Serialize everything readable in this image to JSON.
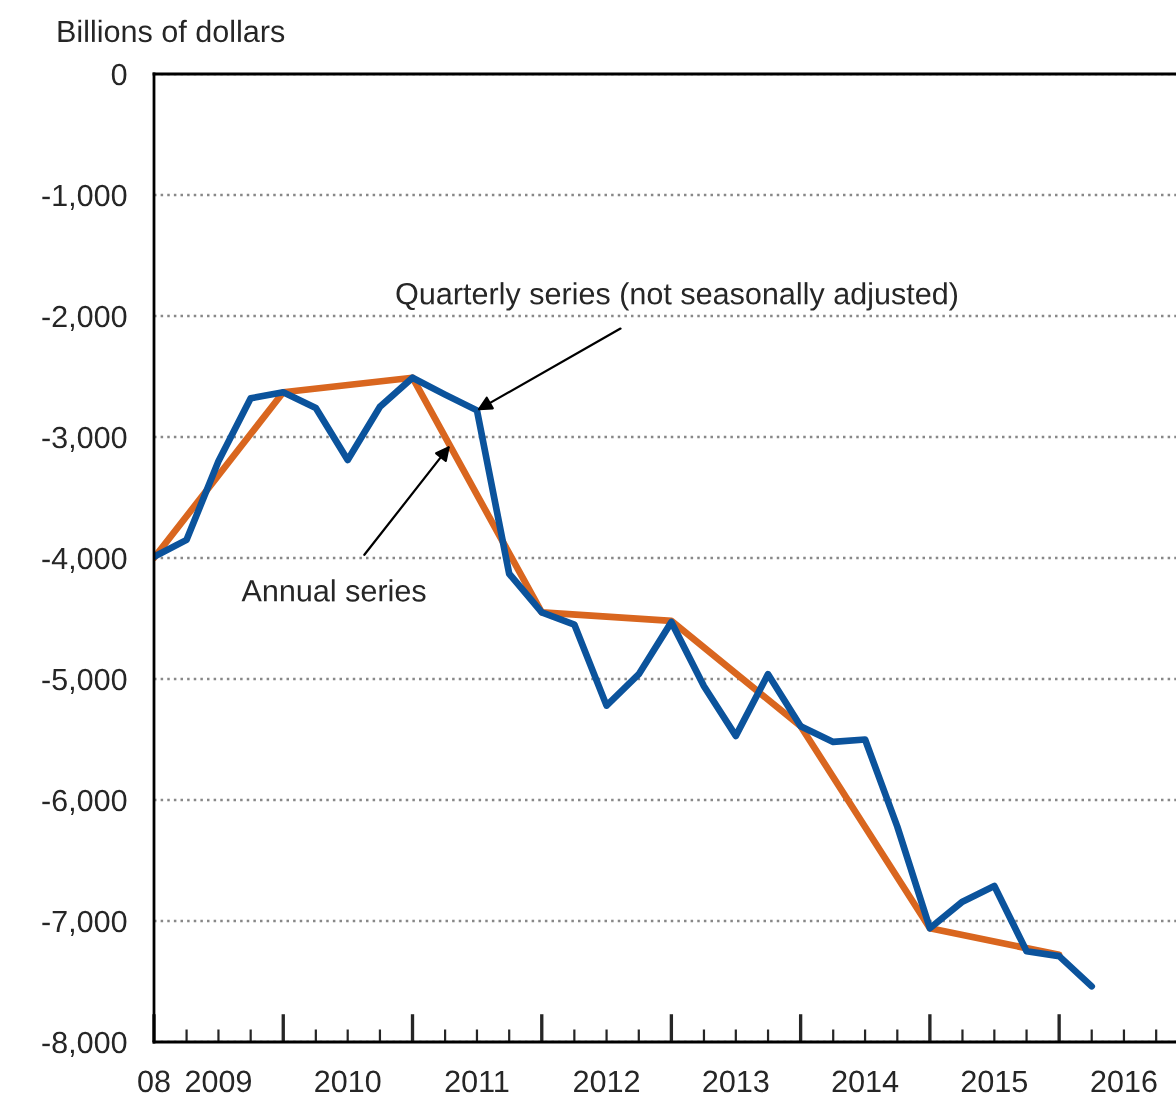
{
  "chart_data": {
    "type": "line",
    "ylabel": "Billions of dollars",
    "series": [
      {
        "color": "#d9661f",
        "x": [
          "2008-10",
          "2009-10",
          "2010-10",
          "2011-10",
          "2012-10",
          "2013-10",
          "2014-10",
          "2015-10"
        ],
        "values": [
          -4000,
          -2630,
          -2510,
          -4450,
          -4520,
          -5390,
          -7060,
          -7280
        ]
      },
      {
        "color": "#0b539c",
        "x": [
          "2008-10",
          "2009-01",
          "2009-04",
          "2009-07",
          "2009-10",
          "2010-01",
          "2010-04",
          "2010-07",
          "2010-10",
          "2011-01",
          "2011-04",
          "2011-07",
          "2011-10",
          "2012-01",
          "2012-04",
          "2012-07",
          "2012-10",
          "2013-01",
          "2013-04",
          "2013-07",
          "2013-10",
          "2014-01",
          "2014-04",
          "2014-07",
          "2014-10",
          "2015-01",
          "2015-04",
          "2015-07",
          "2015-10",
          "2016-01"
        ],
        "values": [
          -3990,
          -3850,
          -3200,
          -2680,
          -2630,
          -2760,
          -3190,
          -2750,
          -2510,
          -2650,
          -2780,
          -4130,
          -4450,
          -4550,
          -5220,
          -4960,
          -4530,
          -5060,
          -5470,
          -4960,
          -5390,
          -5520,
          -5500,
          -6220,
          -7060,
          -6840,
          -6710,
          -7250,
          -7290,
          -7540
        ]
      }
    ],
    "annotations": [
      {
        "text": "Quarterly series (not seasonally adjusted)",
        "x": "2011-04",
        "y": -2780
      },
      {
        "text": "Annual series",
        "x": "2011-01-15",
        "y": -3070
      }
    ],
    "xlim": [
      "2008-10",
      "2016-08-26"
    ],
    "xticks": [
      {
        "value": "2008-10",
        "label": "08"
      },
      {
        "value": "2009-01",
        "label": null
      },
      {
        "value": "2009-04",
        "label": "2009"
      },
      {
        "value": "2009-07",
        "label": null
      },
      {
        "value": "2009-10",
        "label": null
      },
      {
        "value": "2010-01",
        "label": null
      },
      {
        "value": "2010-04",
        "label": "2010"
      },
      {
        "value": "2010-07",
        "label": null
      },
      {
        "value": "2010-10",
        "label": null
      },
      {
        "value": "2011-01",
        "label": null
      },
      {
        "value": "2011-04",
        "label": "2011"
      },
      {
        "value": "2011-07",
        "label": null
      },
      {
        "value": "2011-10",
        "label": null
      },
      {
        "value": "2012-01",
        "label": null
      },
      {
        "value": "2012-04",
        "label": "2012"
      },
      {
        "value": "2012-07",
        "label": null
      },
      {
        "value": "2012-10",
        "label": null
      },
      {
        "value": "2013-01",
        "label": null
      },
      {
        "value": "2013-04",
        "label": "2013"
      },
      {
        "value": "2013-07",
        "label": null
      },
      {
        "value": "2013-10",
        "label": null
      },
      {
        "value": "2014-01",
        "label": null
      },
      {
        "value": "2014-04",
        "label": "2014"
      },
      {
        "value": "2014-07",
        "label": null
      },
      {
        "value": "2014-10",
        "label": null
      },
      {
        "value": "2015-01",
        "label": null
      },
      {
        "value": "2015-04",
        "label": "2015"
      },
      {
        "value": "2015-07",
        "label": null
      },
      {
        "value": "2015-10",
        "label": null
      },
      {
        "value": "2016-01",
        "label": null
      },
      {
        "value": "2016-04",
        "label": "2016"
      },
      {
        "value": "2016-07",
        "label": null
      }
    ],
    "ylim": [
      -8000,
      0
    ],
    "yticks": [
      0,
      {
        "value": -1000,
        "label": "-1,000"
      },
      {
        "value": -2000,
        "label": "-2,000"
      },
      {
        "value": -3000,
        "label": "-3,000"
      },
      {
        "value": -4000,
        "label": "-4,000"
      },
      {
        "value": -5000,
        "label": "-5,000"
      },
      {
        "value": -6000,
        "label": "-6,000"
      },
      {
        "value": -7000,
        "label": "-7,000"
      },
      {
        "value": -8000,
        "label": "-8,000"
      }
    ],
    "grid": "y",
    "legend": false,
    "marker": "none",
    "line_style": "solid"
  }
}
